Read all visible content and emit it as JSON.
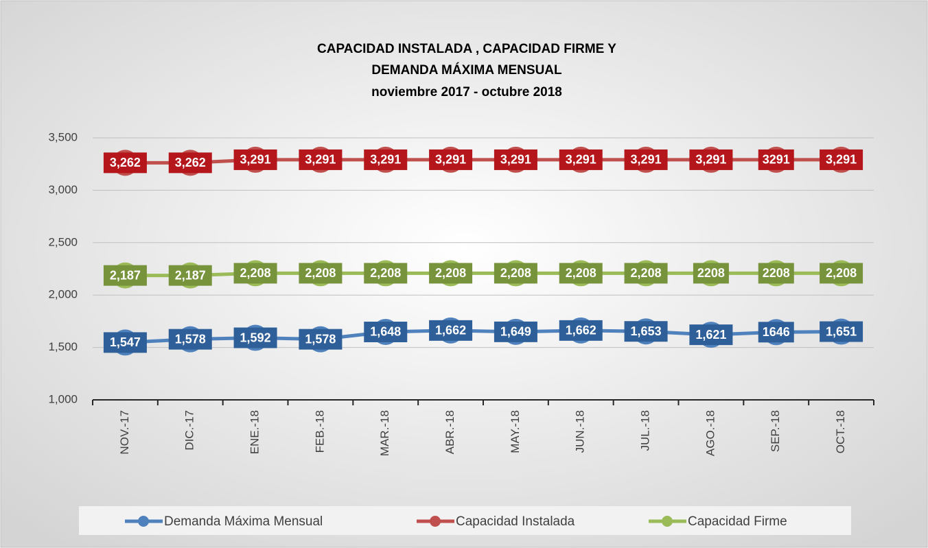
{
  "chart_data": {
    "type": "line",
    "title": [
      "CAPACIDAD  INSTALADA , CAPACIDAD  FIRME  Y",
      "DEMANDA  MÁXIMA  MENSUAL",
      "noviembre  2017   -    octubre  2018"
    ],
    "categories": [
      "NOV.-17",
      "DIC.-17",
      "ENE.-18",
      "FEB.-18",
      "MAR.-18",
      "ABR.-18",
      "MAY.-18",
      "JUN.-18",
      "JUL.-18",
      "AGO.-18",
      "SEP.-18",
      "OCT.-18"
    ],
    "series": [
      {
        "name": "Demanda Máxima Mensual",
        "color": "#4f81bd",
        "label_color": "#2f5f98",
        "values": [
          1547,
          1578,
          1592,
          1578,
          1648,
          1662,
          1649,
          1662,
          1653,
          1621,
          1646,
          1651
        ],
        "value_labels": [
          "1,547",
          "1,578",
          "1,592",
          "1,578",
          "1,648",
          "1,662",
          "1,649",
          "1,662",
          "1,653",
          "1,621",
          "1646",
          "1,651"
        ]
      },
      {
        "name": "Capacidad Instalada",
        "color": "#c0504d",
        "label_color": "#b4161b",
        "values": [
          3262,
          3262,
          3291,
          3291,
          3291,
          3291,
          3291,
          3291,
          3291,
          3291,
          3291,
          3291
        ],
        "value_labels": [
          "3,262",
          "3,262",
          "3,291",
          "3,291",
          "3,291",
          "3,291",
          "3,291",
          "3,291",
          "3,291",
          "3,291",
          "3291",
          "3,291"
        ]
      },
      {
        "name": "Capacidad Firme",
        "color": "#9bbb59",
        "label_color": "#77933c",
        "values": [
          2187,
          2187,
          2208,
          2208,
          2208,
          2208,
          2208,
          2208,
          2208,
          2208,
          2208,
          2208
        ],
        "value_labels": [
          "2,187",
          "2,187",
          "2,208",
          "2,208",
          "2,208",
          "2,208",
          "2,208",
          "2,208",
          "2,208",
          "2208",
          "2208",
          "2,208"
        ]
      }
    ],
    "ylim": [
      1000,
      3500
    ],
    "yticks": [
      {
        "value": 1000,
        "label": "1,000"
      },
      {
        "value": 1500,
        "label": "1,500"
      },
      {
        "value": 2000,
        "label": "2,000"
      },
      {
        "value": 2500,
        "label": "2,500"
      },
      {
        "value": 3000,
        "label": "3,000"
      },
      {
        "value": 3500,
        "label": "3,500"
      }
    ],
    "grid": true,
    "legend": "bottom"
  }
}
